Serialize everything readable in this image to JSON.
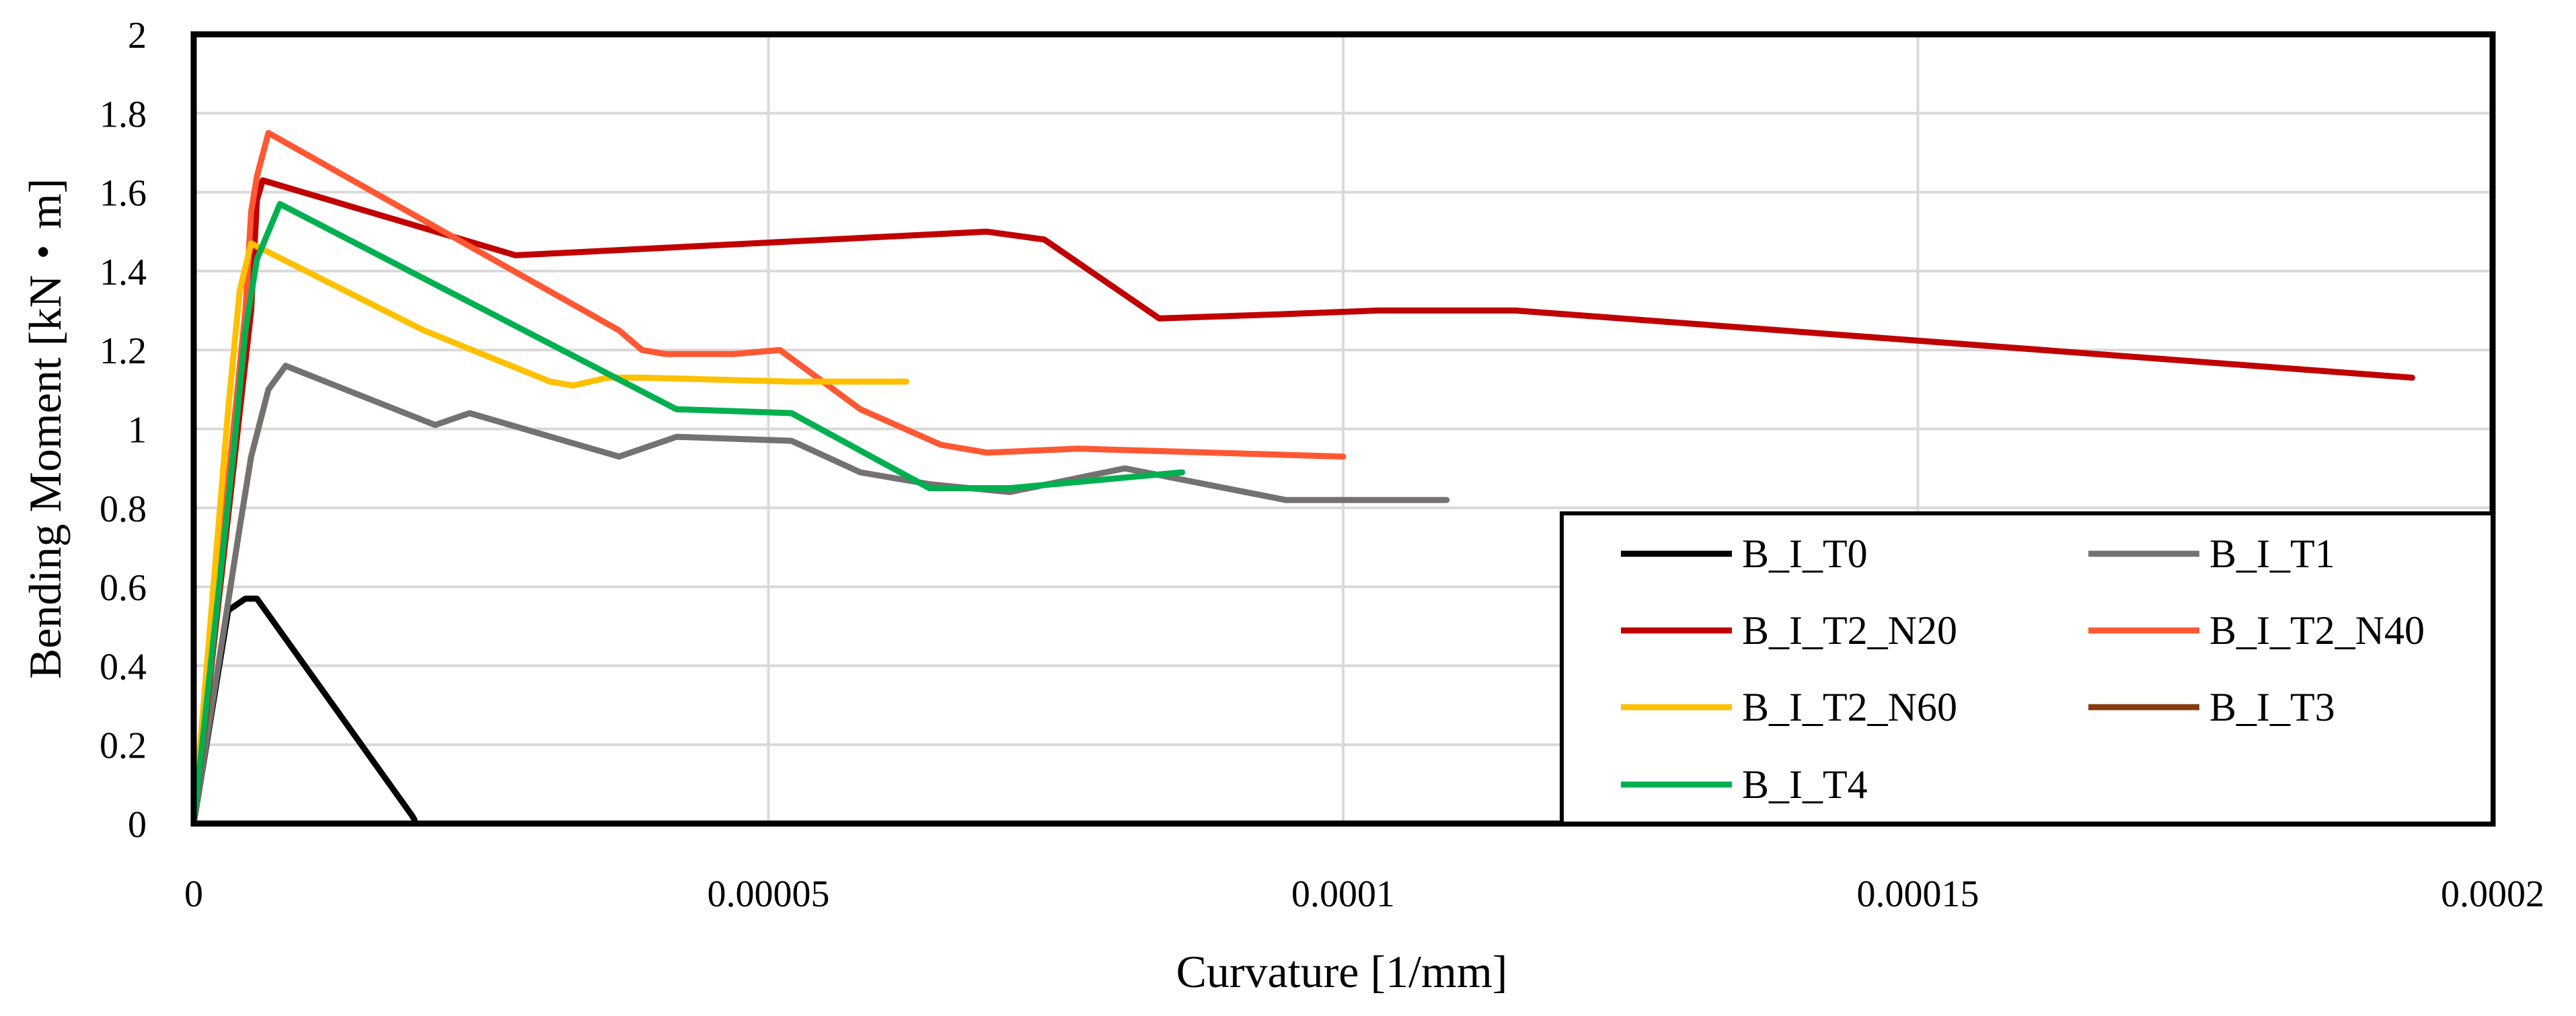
{
  "chart_data": {
    "type": "line",
    "title": "",
    "xlabel": "Curvature [1/mm]",
    "ylabel": "Bending Moment [kN・m]",
    "xlim": [
      0,
      0.0002
    ],
    "ylim": [
      0,
      2
    ],
    "xticks": [
      0,
      5e-05,
      0.0001,
      0.00015,
      0.0002
    ],
    "xtick_labels": [
      "0",
      "0.00005",
      "0.0001",
      "0.00015",
      "0.0002"
    ],
    "yticks": [
      0,
      0.2,
      0.4,
      0.6,
      0.8,
      1,
      1.2,
      1.4,
      1.6,
      1.8,
      2
    ],
    "ytick_labels": [
      "0",
      "0.2",
      "0.4",
      "0.6",
      "0.8",
      "1",
      "1.2",
      "1.4",
      "1.6",
      "1.8",
      "2"
    ],
    "grid": true,
    "legend_position": "bottom-right",
    "series": [
      {
        "name": "B_I_T0",
        "color": "#000000",
        "x": [
          0,
          3e-06,
          4.5e-06,
          5.5e-06,
          1.9e-05,
          1.92e-05
        ],
        "y": [
          0,
          0.54,
          0.57,
          0.57,
          0.02,
          0.01
        ]
      },
      {
        "name": "B_I_T1",
        "color": "#767171",
        "x": [
          0,
          4e-06,
          5e-06,
          6.5e-06,
          8e-06,
          2.1e-05,
          2.4e-05,
          3.7e-05,
          4.2e-05,
          5.2e-05,
          5.8e-05,
          6.4e-05,
          7.1e-05,
          8.1e-05,
          9.5e-05,
          0.000109
        ],
        "y": [
          0,
          0.75,
          0.93,
          1.1,
          1.16,
          1.01,
          1.04,
          0.93,
          0.98,
          0.97,
          0.89,
          0.86,
          0.84,
          0.9,
          0.82,
          0.82
        ]
      },
      {
        "name": "B_I_T2_N20",
        "color": "#C00000",
        "x": [
          0,
          5e-06,
          5.5e-06,
          6e-06,
          2.8e-05,
          6.9e-05,
          7.4e-05,
          8.4e-05,
          9.4e-05,
          0.000103,
          0.000115,
          0.000193
        ],
        "y": [
          0,
          1.3,
          1.58,
          1.63,
          1.44,
          1.5,
          1.48,
          1.28,
          1.29,
          1.3,
          1.3,
          1.13
        ]
      },
      {
        "name": "B_I_T2_N40",
        "color": "#FF5833",
        "x": [
          0,
          4.5e-06,
          5e-06,
          5.5e-06,
          6.5e-06,
          3.7e-05,
          3.9e-05,
          4.1e-05,
          4.7e-05,
          5.1e-05,
          5.8e-05,
          6.5e-05,
          6.9e-05,
          7.7e-05,
          0.0001
        ],
        "y": [
          0,
          1.3,
          1.55,
          1.64,
          1.75,
          1.25,
          1.2,
          1.19,
          1.19,
          1.2,
          1.05,
          0.96,
          0.94,
          0.95,
          0.93
        ]
      },
      {
        "name": "B_I_T2_N60",
        "color": "#FFC000",
        "x": [
          0,
          3e-06,
          4e-06,
          5e-06,
          2e-05,
          3.1e-05,
          3.3e-05,
          3.6e-05,
          3.9e-05,
          5.2e-05,
          6.2e-05
        ],
        "y": [
          0,
          1.05,
          1.35,
          1.47,
          1.25,
          1.12,
          1.11,
          1.13,
          1.13,
          1.12,
          1.12
        ]
      },
      {
        "name": "B_I_T3",
        "color": "#843C0C",
        "x": [],
        "y": []
      },
      {
        "name": "B_I_T4",
        "color": "#00B050",
        "x": [
          0,
          3.5e-06,
          4.5e-06,
          5.5e-06,
          7.5e-06,
          4.2e-05,
          5.2e-05,
          6.4e-05,
          7.1e-05,
          8.6e-05
        ],
        "y": [
          0,
          0.95,
          1.25,
          1.43,
          1.57,
          1.05,
          1.04,
          0.85,
          0.85,
          0.89
        ]
      }
    ]
  }
}
